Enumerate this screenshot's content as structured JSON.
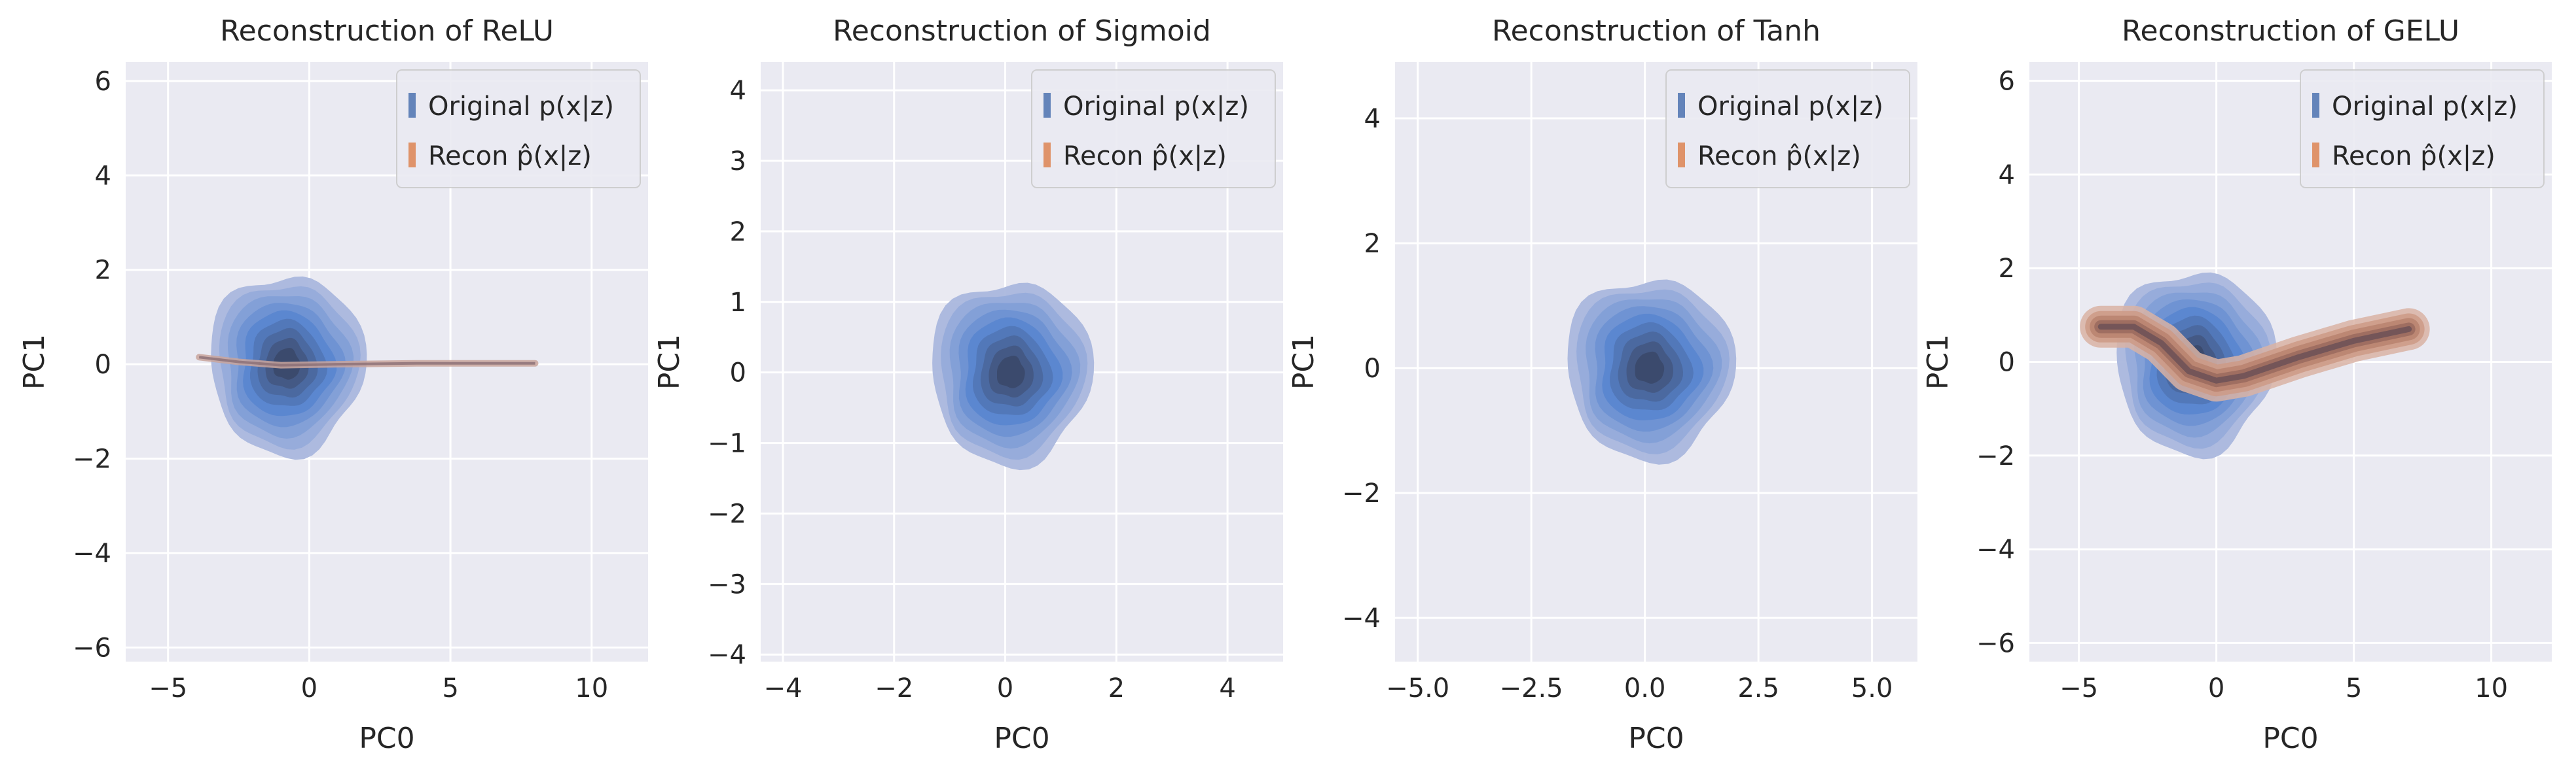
{
  "figure": {
    "colors": {
      "background": "#eaeaf2",
      "grid": "#ffffff",
      "original": "#4c72b0",
      "recon": "#dd8452",
      "text": "#262626"
    }
  },
  "chart_data": [
    {
      "type": "kde_contour",
      "title": "Reconstruction of ReLU",
      "xlabel": "PC0",
      "ylabel": "PC1",
      "xlim": [
        -6.5,
        12
      ],
      "ylim": [
        -6.3,
        6.4
      ],
      "xticks": [
        -5,
        0,
        5,
        10
      ],
      "xtick_labels": [
        "−5",
        "0",
        "5",
        "10"
      ],
      "yticks": [
        -6,
        -4,
        -2,
        0,
        2,
        4,
        6
      ],
      "ytick_labels": [
        "−6",
        "−4",
        "−2",
        "0",
        "2",
        "4",
        "6"
      ],
      "legend": {
        "placement": "top-right",
        "entries": [
          "Original p(x|z)",
          "Recon p̂(x|z)"
        ]
      },
      "grid": true,
      "series": [
        {
          "name": "Original p(x|z)",
          "color": "#4c72b0",
          "center": [
            -0.8,
            0.0
          ],
          "spread_x": 5.5,
          "spread_y": 3.8,
          "levels": 9
        },
        {
          "name": "Recon p̂(x|z)",
          "color": "#dd8452",
          "shape": "line",
          "path": [
            [
              -3.9,
              0.15
            ],
            [
              -2.5,
              0.05
            ],
            [
              -1.0,
              -0.02
            ],
            [
              1.0,
              0.0
            ],
            [
              4.0,
              0.02
            ],
            [
              8.0,
              0.02
            ]
          ]
        }
      ]
    },
    {
      "type": "kde_contour",
      "title": "Reconstruction of Sigmoid",
      "xlabel": "PC0",
      "ylabel": "PC1",
      "xlim": [
        -4.4,
        5.0
      ],
      "ylim": [
        -4.1,
        4.4
      ],
      "xticks": [
        -4,
        -2,
        0,
        2,
        4
      ],
      "xtick_labels": [
        "−4",
        "−2",
        "0",
        "2",
        "4"
      ],
      "yticks": [
        -4,
        -3,
        -2,
        -1,
        0,
        1,
        2,
        3,
        4
      ],
      "ytick_labels": [
        "−4",
        "−3",
        "−2",
        "−1",
        "0",
        "1",
        "2",
        "3",
        "4"
      ],
      "legend": {
        "placement": "top-right",
        "entries": [
          "Original p(x|z)",
          "Recon p̂(x|z)"
        ]
      },
      "grid": true,
      "series": [
        {
          "name": "Original p(x|z)",
          "color": "#4c72b0",
          "center": [
            0.1,
            0.0
          ],
          "spread_x": 2.9,
          "spread_y": 2.6,
          "levels": 9
        },
        {
          "name": "Recon p̂(x|z)",
          "color": "#dd8452",
          "shape": "none",
          "path": []
        }
      ]
    },
    {
      "type": "kde_contour",
      "title": "Reconstruction of Tanh",
      "xlabel": "PC0",
      "ylabel": "PC1",
      "xlim": [
        -5.5,
        6.0
      ],
      "ylim": [
        -4.7,
        4.9
      ],
      "xticks": [
        -5,
        -2.5,
        0,
        2.5,
        5
      ],
      "xtick_labels": [
        "−5.0",
        "−2.5",
        "0.0",
        "2.5",
        "5.0"
      ],
      "yticks": [
        -4,
        -2,
        0,
        2,
        4
      ],
      "ytick_labels": [
        "−4",
        "−2",
        "0",
        "2",
        "4"
      ],
      "legend": {
        "placement": "top-right",
        "entries": [
          "Original p(x|z)",
          "Recon p̂(x|z)"
        ]
      },
      "grid": true,
      "series": [
        {
          "name": "Original p(x|z)",
          "color": "#4c72b0",
          "center": [
            0.1,
            0.0
          ],
          "spread_x": 3.7,
          "spread_y": 2.9,
          "levels": 9
        },
        {
          "name": "Recon p̂(x|z)",
          "color": "#dd8452",
          "shape": "none",
          "path": []
        }
      ]
    },
    {
      "type": "kde_contour",
      "title": "Reconstruction of GELU",
      "xlabel": "PC0",
      "ylabel": "PC1",
      "xlim": [
        -6.8,
        12.2
      ],
      "ylim": [
        -6.4,
        6.4
      ],
      "xticks": [
        -5,
        0,
        5,
        10
      ],
      "xtick_labels": [
        "−5",
        "0",
        "5",
        "10"
      ],
      "yticks": [
        -6,
        -4,
        -2,
        0,
        2,
        4,
        6
      ],
      "ytick_labels": [
        "−6",
        "−4",
        "−2",
        "0",
        "2",
        "4",
        "6"
      ],
      "legend": {
        "placement": "top-right",
        "entries": [
          "Original p(x|z)",
          "Recon p̂(x|z)"
        ]
      },
      "grid": true,
      "series": [
        {
          "name": "Original p(x|z)",
          "color": "#4c72b0",
          "center": [
            -0.8,
            0.0
          ],
          "spread_x": 5.8,
          "spread_y": 3.9,
          "levels": 9
        },
        {
          "name": "Recon p̂(x|z)",
          "color": "#dd8452",
          "shape": "band",
          "path": [
            [
              -4.2,
              0.75
            ],
            [
              -3.0,
              0.75
            ],
            [
              -2.0,
              0.4
            ],
            [
              -1.0,
              -0.2
            ],
            [
              0.0,
              -0.4
            ],
            [
              1.0,
              -0.3
            ],
            [
              3.0,
              0.1
            ],
            [
              5.0,
              0.45
            ],
            [
              7.0,
              0.7
            ]
          ]
        }
      ]
    }
  ]
}
